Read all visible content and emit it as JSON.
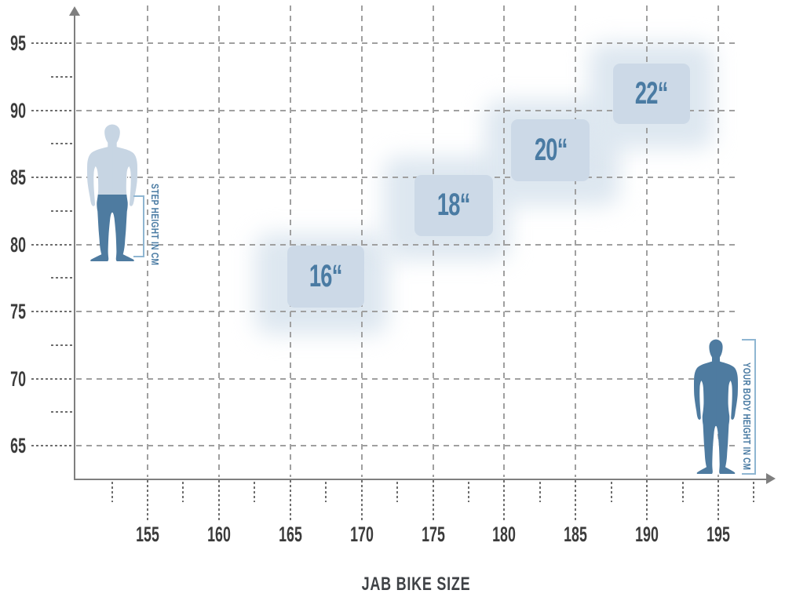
{
  "title": "JAB BIKE SIZE",
  "side_labels": {
    "step_height": "STEP HEIGHT IN CM",
    "body_height": "YOUR BODY HEIGHT IN CM"
  },
  "colors": {
    "zone_fill": "#ccd9e7",
    "zone_fuzz": "#dde7f0",
    "zone_label": "#4a7ba3",
    "figure_light": "#c7d5e3",
    "figure_dark": "#4e7ba0",
    "bracket": "#8fb6d2",
    "axis": "#7f7f7f",
    "grid_major": "#a0a0a0",
    "grid_dense": "#6e6e6e",
    "tick_label": "#3b3b3b",
    "title_color": "#3f4246"
  },
  "chart_data": {
    "type": "area",
    "title": "JAB BIKE SIZE",
    "xlabel": "YOUR BODY HEIGHT IN CM",
    "ylabel": "STEP HEIGHT IN CM",
    "x_ticks": [
      155,
      160,
      165,
      170,
      175,
      180,
      185,
      190,
      195
    ],
    "x_minor_ticks": [
      152.5,
      157.5,
      162.5,
      167.5,
      172.5,
      177.5,
      182.5,
      187.5,
      192.5,
      197.5
    ],
    "y_ticks": [
      65,
      70,
      75,
      80,
      85,
      90,
      95
    ],
    "y_minor_ticks": [
      67.5,
      72.5,
      77.5,
      82.5,
      87.5,
      92.5
    ],
    "xlim": [
      150,
      199
    ],
    "ylim": [
      62.5,
      96.5
    ],
    "grid": "dashed",
    "sizes": [
      {
        "label": "16“",
        "body_height": [
          164.8,
          170.2
        ],
        "step_height": [
          75.3,
          79.9
        ],
        "fuzzy_body": [
          162.0,
          172.4
        ],
        "fuzzy_step": [
          72.7,
          81.4
        ]
      },
      {
        "label": "18“",
        "body_height": [
          173.7,
          179.2
        ],
        "step_height": [
          80.6,
          85.2
        ],
        "fuzzy_body": [
          171.0,
          180.9
        ],
        "fuzzy_step": [
          78.3,
          87.1
        ]
      },
      {
        "label": "20“",
        "body_height": [
          180.5,
          186.0
        ],
        "step_height": [
          84.7,
          89.3
        ],
        "fuzzy_body": [
          178.1,
          188.6
        ],
        "fuzzy_step": [
          82.3,
          91.3
        ]
      },
      {
        "label": "22“",
        "body_height": [
          187.6,
          193.0
        ],
        "step_height": [
          89.0,
          93.5
        ],
        "fuzzy_body": [
          185.4,
          195.2
        ],
        "fuzzy_step": [
          86.6,
          95.6
        ]
      }
    ]
  }
}
